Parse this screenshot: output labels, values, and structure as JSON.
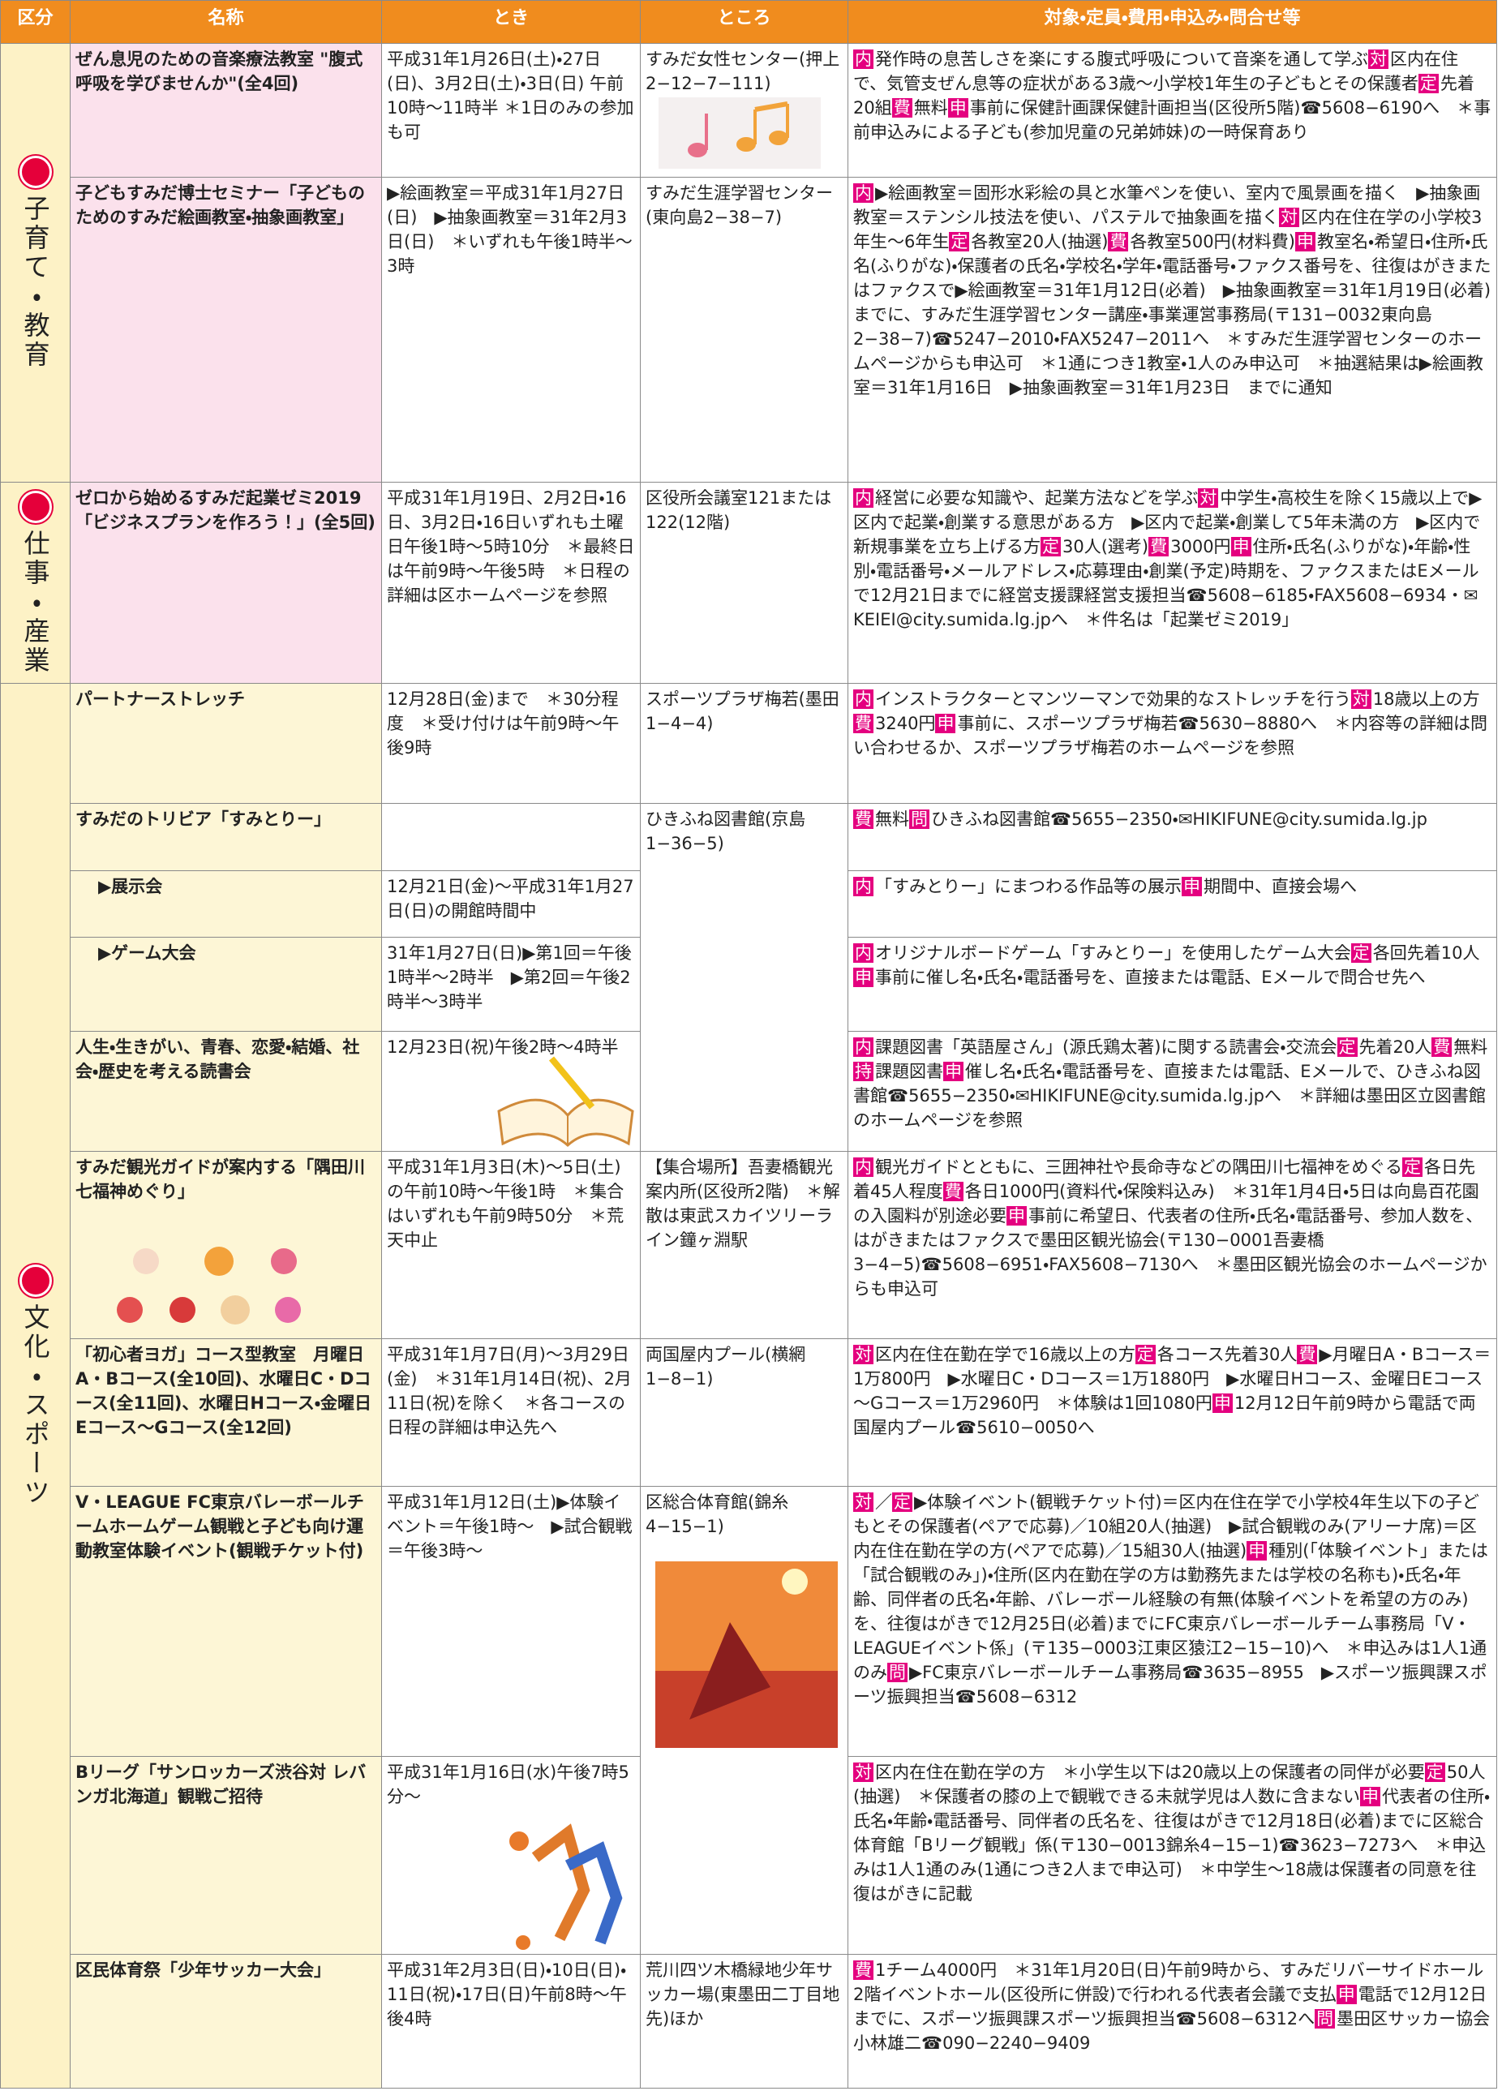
{
  "header": [
    "区分",
    "名称",
    "とき",
    "ところ",
    "対象・定員・費用・申込み・問合せ等"
  ],
  "sections": [
    {
      "label": "子育て・教育",
      "rows": [
        {
          "name": "ぜん息児のための音楽療法教室 \"腹式呼吸を学びませんか\"(全4回)",
          "time": "平成31年1月26日(土)・27日(日)、3月2日(土)・3日(日) 午前10時～11時半 ＊1日のみの参加も可",
          "place": "すみだ女性センター(押上2−12−7−111)",
          "details": [
            [
              "内",
              "発作時の息苦しさを楽にする腹式呼吸について音楽を通して学ぶ"
            ],
            [
              "対",
              "区内在住で、気管支ぜん息等の症状がある3歳～小学校1年生の子どもとその保護者"
            ],
            [
              "定",
              "先着20組"
            ],
            [
              "費",
              "無料"
            ],
            [
              "申",
              "事前に保健計画課保健計画担当(区役所5階)☎5608−6190へ　＊事前申込みによる子ども(参加児童の兄弟姉妹)の一時保育あり"
            ]
          ]
        },
        {
          "name": "子どもすみだ博士セミナー「子どものためのすみだ絵画教室・抽象画教室」",
          "time": "▶絵画教室＝平成31年1月27日(日)　▶抽象画教室＝31年2月3日(日)　＊いずれも午後1時半～3時",
          "place": "すみだ生涯学習センター(東向島2−38−7)",
          "details": [
            [
              "内",
              "▶絵画教室＝固形水彩絵の具と水筆ペンを使い、室内で風景画を描く　▶抽象画教室＝ステンシル技法を使い、パステルで抽象画を描く"
            ],
            [
              "対",
              "区内在住在学の小学校3年生～6年生"
            ],
            [
              "定",
              "各教室20人(抽選)"
            ],
            [
              "費",
              "各教室500円(材料費)"
            ],
            [
              "申",
              "教室名・希望日・住所・氏名(ふりがな)・保護者の氏名・学校名・学年・電話番号・ファクス番号を、往復はがきまたはファクスで▶絵画教室＝31年1月12日(必着)　▶抽象画教室＝31年1月19日(必着)　までに、すみだ生涯学習センター講座・事業運営事務局(〒131−0032東向島2−38−7)☎5247−2010・FAX5247−2011へ　＊すみだ生涯学習センターのホームページからも申込可　＊1通につき1教室・1人のみ申込可　＊抽選結果は▶絵画教室＝31年1月16日　▶抽象画教室＝31年1月23日　までに通知"
            ]
          ]
        }
      ]
    },
    {
      "label": "仕事・産業",
      "rows": [
        {
          "name": "ゼロから始めるすみだ起業ゼミ2019「ビジネスプランを作ろう！」(全5回)",
          "time": "平成31年1月19日、2月2日・16日、3月2日・16日いずれも土曜日午後1時～5時10分　＊最終日は午前9時～午後5時　＊日程の詳細は区ホームページを参照",
          "place": "区役所会議室121または122(12階)",
          "details": [
            [
              "内",
              "経営に必要な知識や、起業方法などを学ぶ"
            ],
            [
              "対",
              "中学生・高校生を除く15歳以上で▶区内で起業・創業する意思がある方　▶区内で起業・創業して5年未満の方　▶区内で新規事業を立ち上げる方"
            ],
            [
              "定",
              "30人(選考)"
            ],
            [
              "費",
              "3000円"
            ],
            [
              "申",
              "住所・氏名(ふりがな)・年齢・性別・電話番号・メールアドレス・応募理由・創業(予定)時期を、ファクスまたはEメールで12月21日までに経営支援課経営支援担当☎5608−6185・FAX5608−6934・✉KEIEI@city.sumida.lg.jpへ　＊件名は「起業ゼミ2019」"
            ]
          ]
        }
      ]
    },
    {
      "label": "文化・スポーツ",
      "rows": [
        {
          "name": "パートナーストレッチ",
          "time": "12月28日(金)まで　＊30分程度　＊受け付けは午前9時～午後9時",
          "place": "スポーツプラザ梅若(墨田1−4−4)",
          "details": [
            [
              "内",
              "インストラクターとマンツーマンで効果的なストレッチを行う"
            ],
            [
              "対",
              "18歳以上の方"
            ],
            [
              "費",
              "3240円"
            ],
            [
              "申",
              "事前に、スポーツプラザ梅若☎5630−8880へ　＊内容等の詳細は問い合わせるか、スポーツプラザ梅若のホームページを参照"
            ]
          ]
        },
        {
          "name": "すみだのトリビア「すみとりー」",
          "place": "ひきふね図書館(京島1−36−5)",
          "details": [
            [
              "費",
              "無料"
            ],
            [
              "問",
              "ひきふね図書館☎5655−2350・✉HIKIFUNE@city.sumida.lg.jp"
            ]
          ],
          "items": [
            {
              "name": "▶展示会",
              "time": "12月21日(金)～平成31年1月27日(日)の開館時間中",
              "details": [
                [
                  "内",
                  "「すみとりー」にまつわる作品等の展示"
                ],
                [
                  "申",
                  "期間中、直接会場へ"
                ]
              ]
            },
            {
              "name": "▶ゲーム大会",
              "time": "31年1月27日(日)▶第1回＝午後1時半～2時半　▶第2回＝午後2時半～3時半",
              "details": [
                [
                  "内",
                  "オリジナルボードゲーム「すみとりー」を使用したゲーム大会"
                ],
                [
                  "定",
                  "各回先着10人"
                ],
                [
                  "申",
                  "事前に催し名・氏名・電話番号を、直接または電話、Eメールで問合せ先へ"
                ]
              ]
            }
          ]
        },
        {
          "name": "人生・生きがい、青春、恋愛・結婚、社会・歴史を考える読書会",
          "time": "12月23日(祝)午後2時～4時半",
          "details": [
            [
              "内",
              "課題図書「英語屋さん」(源氏鶏太著)に関する読書会・交流会"
            ],
            [
              "定",
              "先着20人"
            ],
            [
              "費",
              "無料"
            ],
            [
              "持",
              "課題図書"
            ],
            [
              "申",
              "催し名・氏名・電話番号を、直接または電話、Eメールで、ひきふね図書館☎5655−2350・✉HIKIFUNE@city.sumida.lg.jpへ　＊詳細は墨田区立図書館のホームページを参照"
            ]
          ]
        },
        {
          "name": "すみだ観光ガイドが案内する「隅田川七福神めぐり」",
          "time": "平成31年1月3日(木)～5日(土)の午前10時～午後1時　＊集合はいずれも午前9時50分　＊荒天中止",
          "place": "【集合場所】吾妻橋観光案内所(区役所2階)　＊解散は東武スカイツリーライン鐘ヶ淵駅",
          "details": [
            [
              "内",
              "観光ガイドとともに、三囲神社や長命寺などの隅田川七福神をめぐる"
            ],
            [
              "定",
              "各日先着45人程度"
            ],
            [
              "費",
              "各日1000円(資料代・保険料込み)　＊31年1月4日・5日は向島百花園の入園料が別途必要"
            ],
            [
              "申",
              "事前に希望日、代表者の住所・氏名・電話番号、参加人数を、はがきまたはファクスで墨田区観光協会(〒130−0001吾妻橋3−4−5)☎5608−6951・FAX5608−7130へ　＊墨田区観光協会のホームページからも申込可"
            ]
          ]
        },
        {
          "name": "「初心者ヨガ」コース型教室　月曜日A・Bコース(全10回)、水曜日C・Dコース(全11回)、水曜日Hコース・金曜日Eコース～Gコース(全12回)",
          "time": "平成31年1月7日(月)～3月29日(金)　＊31年1月14日(祝)、2月11日(祝)を除く　＊各コースの日程の詳細は申込先へ",
          "place": "両国屋内プール(横網1−8−1)",
          "details": [
            [
              "対",
              "区内在住在勤在学で16歳以上の方"
            ],
            [
              "定",
              "各コース先着30人"
            ],
            [
              "費",
              "▶月曜日A・Bコース＝1万800円　▶水曜日C・Dコース＝1万1880円　▶水曜日Hコース、金曜日Eコース～Gコース＝1万2960円　＊体験は1回1080円"
            ],
            [
              "申",
              "12月12日午前9時から電話で両国屋内プール☎5610−0050へ"
            ]
          ]
        },
        {
          "name": "V・LEAGUE FC東京バレーボールチームホームゲーム観戦と子ども向け運動教室体験イベント(観戦チケット付)",
          "time": "平成31年1月12日(土)▶体験イベント＝午後1時～　▶試合観戦＝午後3時～",
          "place": "区総合体育館(錦糸4−15−1)",
          "details": [
            [
              "対",
              "／"
            ],
            [
              "定",
              "▶体験イベント(観戦チケット付)＝区内在住在学で小学校4年生以下の子どもとその保護者(ペアで応募)／10組20人(抽選)　▶試合観戦のみ(アリーナ席)＝区内在住在勤在学の方(ペアで応募)／15組30人(抽選)"
            ],
            [
              "申",
              "種別(「体験イベント」または「試合観戦のみ」)・住所(区内在勤在学の方は勤務先または学校の名称も)・氏名・年齢、同伴者の氏名・年齢、バレーボール経験の有無(体験イベントを希望の方のみ)を、往復はがきで12月25日(必着)までにFC東京バレーボールチーム事務局「V・LEAGUEイベント係」(〒135−0003江東区猿江2−15−10)へ　＊申込みは1人1通のみ"
            ],
            [
              "問",
              "▶FC東京バレーボールチーム事務局☎3635−8955　▶スポーツ振興課スポーツ振興担当☎5608−6312"
            ]
          ]
        },
        {
          "name": "Bリーグ「サンロッカーズ渋谷対 レバンガ北海道」観戦ご招待",
          "time": "平成31年1月16日(水)午後7時5分～",
          "details": [
            [
              "対",
              "区内在住在勤在学の方　＊小学生以下は20歳以上の保護者の同伴が必要"
            ],
            [
              "定",
              "50人(抽選)　＊保護者の膝の上で観戦できる未就学児は人数に含まない"
            ],
            [
              "申",
              "代表者の住所・氏名・年齢・電話番号、同伴者の氏名を、往復はがきで12月18日(必着)までに区総合体育館「Bリーグ観戦」係(〒130−0013錦糸4−15−1)☎3623−7273へ　＊申込みは1人1通のみ(1通につき2人まで申込可)　＊中学生～18歳は保護者の同意を往復はがきに記載"
            ]
          ]
        },
        {
          "name": "区民体育祭「少年サッカー大会」",
          "time": "平成31年2月3日(日)・10日(日)・11日(祝)・17日(日)午前8時～午後4時",
          "place": "荒川四ツ木橋緑地少年サッカー場(東墨田二丁目地先)ほか",
          "details": [
            [
              "費",
              "1チーム4000円　＊31年1月20日(日)午前9時から、すみだリバーサイドホール2階イベントホール(区役所に併設)で行われる代表者会議で支払"
            ],
            [
              "申",
              "電話で12月12日までに、スポーツ振興課スポーツ振興担当☎5608−6312へ"
            ],
            [
              "問",
              "墨田区サッカー協会　小林雄二☎090−2240−9409"
            ]
          ]
        }
      ]
    }
  ]
}
